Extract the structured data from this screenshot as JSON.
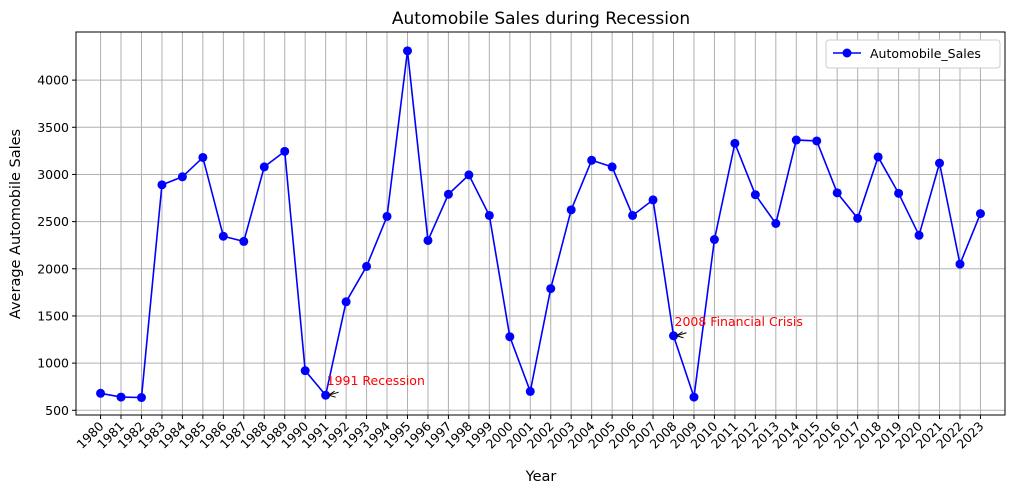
{
  "chart_data": {
    "type": "line",
    "title": "Automobile Sales during Recession",
    "xlabel": "Year",
    "ylabel": "Average Automobile Sales",
    "x": [
      1980,
      1981,
      1982,
      1983,
      1984,
      1985,
      1986,
      1987,
      1988,
      1989,
      1990,
      1991,
      1992,
      1993,
      1994,
      1995,
      1996,
      1997,
      1998,
      1999,
      2000,
      2001,
      2002,
      2003,
      2004,
      2005,
      2006,
      2007,
      2008,
      2009,
      2010,
      2011,
      2012,
      2013,
      2014,
      2015,
      2016,
      2017,
      2018,
      2019,
      2020,
      2021,
      2022,
      2023
    ],
    "series": [
      {
        "name": "Automobile_Sales",
        "color": "#0000ff",
        "marker": "circle",
        "values": [
          680,
          640,
          635,
          2890,
          2975,
          3180,
          2345,
          2290,
          3080,
          3245,
          920,
          660,
          1650,
          2025,
          2555,
          4310,
          2300,
          2790,
          2995,
          2565,
          1280,
          700,
          1790,
          2625,
          3150,
          3080,
          2565,
          2730,
          1290,
          640,
          2310,
          3330,
          2785,
          2480,
          3365,
          3355,
          2805,
          2535,
          3185,
          2800,
          2355,
          3120,
          2050,
          2585
        ]
      }
    ],
    "xticks": [
      "1980",
      "1981",
      "1982",
      "1983",
      "1984",
      "1985",
      "1986",
      "1987",
      "1988",
      "1989",
      "1990",
      "1991",
      "1992",
      "1993",
      "1994",
      "1995",
      "1996",
      "1997",
      "1998",
      "1999",
      "2000",
      "2001",
      "2002",
      "2003",
      "2004",
      "2005",
      "2006",
      "2007",
      "2008",
      "2009",
      "2010",
      "2011",
      "2012",
      "2013",
      "2014",
      "2015",
      "2016",
      "2017",
      "2018",
      "2019",
      "2020",
      "2021",
      "2022",
      "2023"
    ],
    "yticks": [
      500,
      1000,
      1500,
      2000,
      2500,
      3000,
      3500,
      4000
    ],
    "ylim": [
      450,
      4510
    ],
    "xlim": [
      1978.8,
      2024.2
    ],
    "grid": true,
    "legend_position": "top-right",
    "annotations": [
      {
        "text": "1991 Recession",
        "x": 1991,
        "y": 660,
        "color": "#ff0000"
      },
      {
        "text": "2008 Financial Crisis",
        "x": 2008,
        "y": 1290,
        "color": "#ff0000"
      }
    ]
  }
}
